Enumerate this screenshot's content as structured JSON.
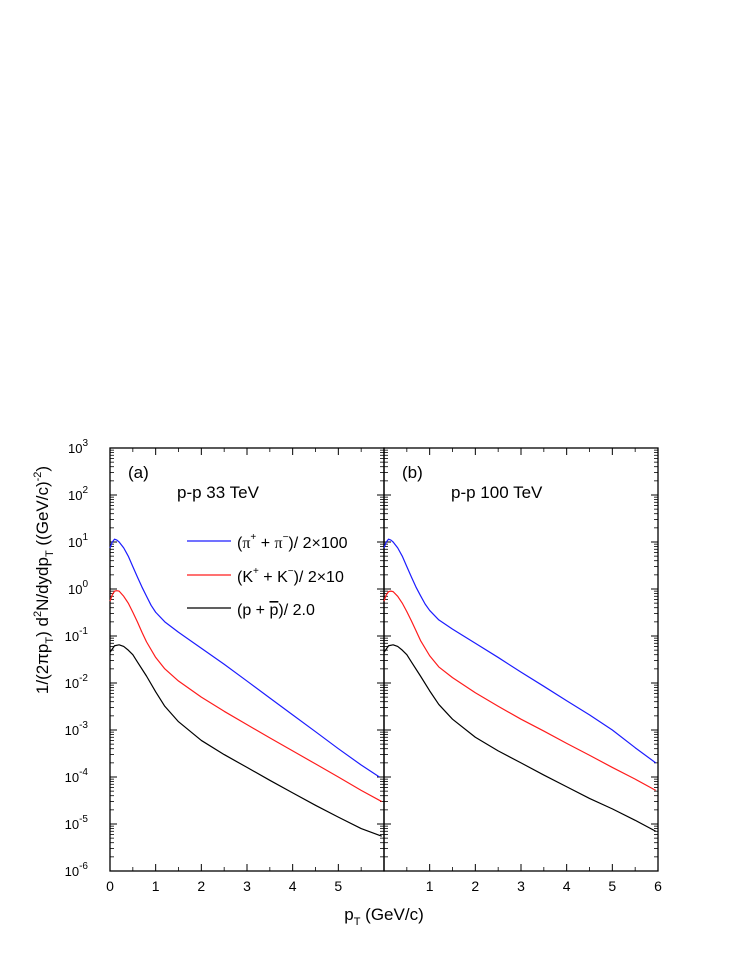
{
  "chart_data": [
    {
      "type": "line",
      "panel_label": "(a)",
      "annotation": "p-p   33 TeV",
      "xlabel": "p",
      "xlabel_sub": "T",
      "xlabel_rest": " (GeV/c)",
      "ylabel": "1/(2πp_T) d²N/dydp_T ((GeV/c)^-2)",
      "xlim": [
        0,
        6
      ],
      "ylim": [
        1e-06,
        1000
      ],
      "yscale": "log",
      "xticks": [
        "0",
        "1",
        "2",
        "3",
        "4",
        "5"
      ],
      "yticks": [
        "10^-6",
        "10^-5",
        "10^-4",
        "10^-3",
        "10^-2",
        "10^-1",
        "10^0",
        "10^1",
        "10^2",
        "10^3"
      ],
      "legend_position": "top-right",
      "series": [
        {
          "name": "(π⁺ + π⁻)/ 2×100",
          "color": "#1c1cff",
          "x": [
            0.0,
            0.05,
            0.1,
            0.15,
            0.2,
            0.3,
            0.4,
            0.5,
            0.6,
            0.7,
            0.8,
            0.9,
            1.0,
            1.2,
            1.5,
            2.0,
            2.5,
            3.0,
            3.5,
            4.0,
            4.5,
            5.0,
            5.5,
            5.9
          ],
          "y": [
            7.5,
            10,
            11.5,
            11,
            10,
            7.5,
            5,
            3,
            1.8,
            1.1,
            0.7,
            0.45,
            0.32,
            0.2,
            0.12,
            0.055,
            0.025,
            0.011,
            0.0048,
            0.0021,
            0.00092,
            0.0004,
            0.00018,
            0.0001
          ]
        },
        {
          "name": "(K⁺ + K⁻)/ 2×10",
          "color": "#ff1c1c",
          "x": [
            0.0,
            0.05,
            0.1,
            0.15,
            0.2,
            0.3,
            0.4,
            0.5,
            0.6,
            0.7,
            0.8,
            1.0,
            1.2,
            1.5,
            2.0,
            2.5,
            3.0,
            3.5,
            4.0,
            4.5,
            5.0,
            5.5,
            5.95
          ],
          "y": [
            0.55,
            0.75,
            0.9,
            0.92,
            0.9,
            0.7,
            0.5,
            0.32,
            0.2,
            0.12,
            0.075,
            0.035,
            0.02,
            0.011,
            0.005,
            0.0025,
            0.0013,
            0.00068,
            0.00036,
            0.00019,
            0.0001,
            5.2e-05,
            3e-05
          ]
        },
        {
          "name": "(p + p̄)/ 2.0",
          "color": "#000000",
          "x": [
            0.0,
            0.1,
            0.2,
            0.3,
            0.4,
            0.5,
            0.6,
            0.8,
            1.0,
            1.2,
            1.5,
            2.0,
            2.5,
            3.0,
            3.5,
            4.0,
            4.5,
            5.0,
            5.5,
            5.95
          ],
          "y": [
            0.045,
            0.062,
            0.065,
            0.06,
            0.05,
            0.04,
            0.028,
            0.014,
            0.0065,
            0.0032,
            0.0015,
            0.0006,
            0.0003,
            0.00016,
            8.5e-05,
            4.6e-05,
            2.5e-05,
            1.4e-05,
            8e-06,
            5.5e-06
          ]
        }
      ]
    },
    {
      "type": "line",
      "panel_label": "(b)",
      "annotation": "p-p   100 TeV",
      "xlim": [
        0,
        6
      ],
      "ylim": [
        1e-06,
        1000
      ],
      "yscale": "log",
      "xticks": [
        "1",
        "2",
        "3",
        "4",
        "5",
        "6"
      ],
      "series": [
        {
          "name": "(π⁺ + π⁻)/ 2×100",
          "color": "#1c1cff",
          "x": [
            0.0,
            0.05,
            0.1,
            0.15,
            0.2,
            0.3,
            0.4,
            0.5,
            0.6,
            0.7,
            0.8,
            0.9,
            1.0,
            1.2,
            1.5,
            2.0,
            2.5,
            3.0,
            3.5,
            4.0,
            4.5,
            5.0,
            5.5,
            5.95
          ],
          "y": [
            7.5,
            10,
            11.5,
            11,
            10,
            7.5,
            5,
            3,
            1.8,
            1.1,
            0.72,
            0.48,
            0.35,
            0.22,
            0.14,
            0.07,
            0.035,
            0.017,
            0.0085,
            0.0042,
            0.0021,
            0.001,
            0.00042,
            0.0002
          ]
        },
        {
          "name": "(K⁺ + K⁻)/ 2×10",
          "color": "#ff1c1c",
          "x": [
            0.0,
            0.05,
            0.1,
            0.15,
            0.2,
            0.3,
            0.4,
            0.5,
            0.6,
            0.7,
            0.8,
            1.0,
            1.2,
            1.5,
            2.0,
            2.5,
            3.0,
            3.5,
            4.0,
            4.5,
            5.0,
            5.5,
            5.95
          ],
          "y": [
            0.55,
            0.75,
            0.88,
            0.9,
            0.88,
            0.7,
            0.5,
            0.33,
            0.21,
            0.13,
            0.08,
            0.038,
            0.022,
            0.013,
            0.0062,
            0.0032,
            0.0017,
            0.00095,
            0.00052,
            0.00029,
            0.00016,
            9e-05,
            5.2e-05
          ]
        },
        {
          "name": "(p + p̄)/ 2.0",
          "color": "#000000",
          "x": [
            0.0,
            0.1,
            0.2,
            0.3,
            0.4,
            0.5,
            0.6,
            0.8,
            1.0,
            1.2,
            1.5,
            2.0,
            2.5,
            3.0,
            3.5,
            4.0,
            4.5,
            5.0,
            5.5,
            5.95
          ],
          "y": [
            0.045,
            0.062,
            0.065,
            0.06,
            0.05,
            0.04,
            0.028,
            0.014,
            0.0068,
            0.0035,
            0.0017,
            0.0007,
            0.00036,
            0.0002,
            0.00011,
            6.2e-05,
            3.5e-05,
            2.1e-05,
            1.2e-05,
            7e-06
          ]
        }
      ]
    }
  ]
}
